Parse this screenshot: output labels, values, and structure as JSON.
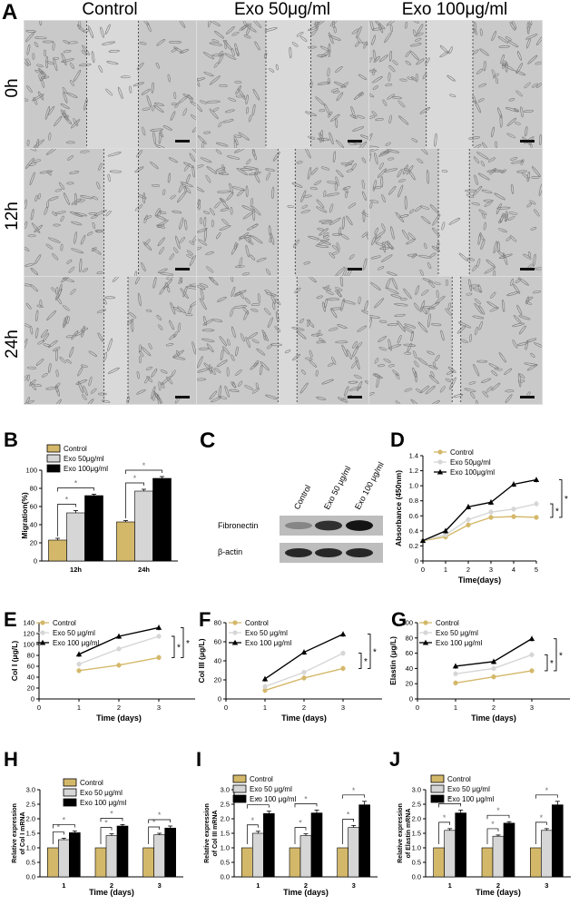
{
  "panel_A": {
    "letter": "A",
    "columns": [
      "Control",
      "Exo 50μg/ml",
      "Exo 100μg/ml"
    ],
    "rows": [
      "0h",
      "12h",
      "24h"
    ]
  },
  "panel_C": {
    "letter": "C",
    "lanes": [
      "Control",
      "Exo 50 μg/ml",
      "Exo 100 μg/ml"
    ],
    "band_labels": [
      "Fibronectin",
      "β-actin"
    ],
    "fibronectin_intensity": [
      0.35,
      0.8,
      0.95
    ],
    "actin_intensity": [
      0.85,
      0.85,
      0.85
    ]
  },
  "colors": {
    "control": "#d4b86a",
    "exo50": "#d6d6d6",
    "exo100": "#000000"
  },
  "chart_data": [
    {
      "id": "B",
      "type": "bar",
      "letter": "B",
      "categories": [
        "12h",
        "24h"
      ],
      "series": [
        {
          "name": "Control",
          "values": [
            23,
            43
          ],
          "errors": [
            2,
            1.5
          ]
        },
        {
          "name": "Exo 50μg/ml",
          "values": [
            53,
            77
          ],
          "errors": [
            2.5,
            2
          ]
        },
        {
          "name": "Exo 100μg/ml",
          "values": [
            72,
            91
          ],
          "errors": [
            1.5,
            2
          ]
        }
      ],
      "ylabel": "Migration(%)",
      "xlabel": "",
      "ylim": [
        0,
        100
      ],
      "yticks": [
        0,
        20,
        40,
        60,
        80,
        100
      ],
      "legend": "top-left",
      "sig": "*"
    },
    {
      "id": "D",
      "type": "line",
      "letter": "D",
      "x": [
        0,
        1,
        2,
        3,
        4,
        5
      ],
      "series": [
        {
          "name": "Control",
          "values": [
            0.27,
            0.32,
            0.48,
            0.58,
            0.59,
            0.58
          ]
        },
        {
          "name": "Exo 50μg/ml",
          "values": [
            0.27,
            0.35,
            0.55,
            0.65,
            0.69,
            0.76
          ]
        },
        {
          "name": "Exo 100μg/ml",
          "values": [
            0.27,
            0.4,
            0.72,
            0.78,
            1.02,
            1.08
          ]
        }
      ],
      "ylabel": "Absorbance (450nm)",
      "xlabel": "Time(days)",
      "ylim": [
        0,
        1.4
      ],
      "yticks": [
        0,
        0.2,
        0.4,
        0.6,
        0.8,
        1.0,
        1.2,
        1.4
      ],
      "ytick_labels": [
        "0",
        "0.2",
        "0.4",
        "0.6",
        "0.8",
        "1.0",
        "1.2",
        "1.4"
      ],
      "xlim": [
        0,
        5
      ],
      "xticks": [
        0,
        1,
        2,
        3,
        4,
        5
      ],
      "legend": "top-left",
      "sig": "*"
    },
    {
      "id": "E",
      "type": "line",
      "letter": "E",
      "x": [
        1,
        2,
        3
      ],
      "series": [
        {
          "name": "Control",
          "values": [
            52,
            62,
            76
          ]
        },
        {
          "name": "Exo 50 μg/ml",
          "values": [
            64,
            92,
            115
          ]
        },
        {
          "name": "Exo 100 μg/ml",
          "values": [
            82,
            115,
            131
          ]
        }
      ],
      "ylabel": "Col I (μg/L)",
      "xlabel": "Time (days)",
      "ylim": [
        0,
        140
      ],
      "yticks": [
        0,
        20,
        40,
        60,
        80,
        100,
        120,
        140
      ],
      "xlim": [
        0,
        4
      ],
      "xticks": [
        0,
        1,
        2,
        3
      ],
      "legend": "top-left",
      "sig": "*"
    },
    {
      "id": "F",
      "type": "line",
      "letter": "F",
      "x": [
        1,
        2,
        3
      ],
      "series": [
        {
          "name": "Control",
          "values": [
            9,
            22,
            32
          ]
        },
        {
          "name": "Exo 50 μg/ml",
          "values": [
            13,
            28,
            48
          ]
        },
        {
          "name": "Exo 100 μg/ml",
          "values": [
            21,
            49,
            68
          ]
        }
      ],
      "ylabel": "Col III (μg/L)",
      "xlabel": "Time (days)",
      "ylim": [
        0,
        80
      ],
      "yticks": [
        0,
        20,
        40,
        60,
        80
      ],
      "xlim": [
        0,
        4
      ],
      "xticks": [
        0,
        1,
        2,
        3
      ],
      "legend": "top-left",
      "sig": "*"
    },
    {
      "id": "G",
      "type": "line",
      "letter": "G",
      "x": [
        1,
        2,
        3
      ],
      "series": [
        {
          "name": "Control",
          "values": [
            21,
            29,
            37
          ]
        },
        {
          "name": "Exo 50 μg/ml",
          "values": [
            33,
            40,
            58
          ]
        },
        {
          "name": "Exo 100 μg/ml",
          "values": [
            43,
            49,
            79
          ]
        }
      ],
      "ylabel": "Elastin (μg/L)",
      "xlabel": "Time (days)",
      "ylim": [
        0,
        100
      ],
      "yticks": [
        0,
        20,
        40,
        60,
        80,
        100
      ],
      "xlim": [
        0,
        4
      ],
      "xticks": [
        0,
        1,
        2,
        3
      ],
      "legend": "top-left",
      "sig": "*"
    },
    {
      "id": "H",
      "type": "bar",
      "letter": "H",
      "categories": [
        "1",
        "2",
        "3"
      ],
      "series": [
        {
          "name": "Control",
          "values": [
            1.0,
            1.0,
            1.0
          ],
          "errors": [
            0,
            0,
            0
          ]
        },
        {
          "name": "Exo 50 μg/ml",
          "values": [
            1.28,
            1.42,
            1.45
          ],
          "errors": [
            0.05,
            0.06,
            0.05
          ]
        },
        {
          "name": "Exo 100 μg/ml",
          "values": [
            1.52,
            1.75,
            1.68
          ],
          "errors": [
            0.06,
            0.05,
            0.07
          ]
        }
      ],
      "ylabel": "Relative expression of Col I mRNA",
      "xlabel": "Time (days)",
      "ylim": [
        0,
        3.0
      ],
      "yticks": [
        0,
        0.5,
        1.0,
        1.5,
        2.0,
        2.5,
        3.0
      ],
      "ytick_labels": [
        "0.0",
        "0.5",
        "1.0",
        "1.5",
        "2.0",
        "2.5",
        "3.0"
      ],
      "legend": "top-left",
      "sig": "*"
    },
    {
      "id": "I",
      "type": "bar",
      "letter": "I",
      "categories": [
        "1",
        "2",
        "3"
      ],
      "series": [
        {
          "name": "Control",
          "values": [
            1.0,
            1.0,
            1.0
          ],
          "errors": [
            0,
            0,
            0
          ]
        },
        {
          "name": "Exo 50 μg/ml",
          "values": [
            1.5,
            1.42,
            1.7
          ],
          "errors": [
            0.07,
            0.06,
            0.07
          ]
        },
        {
          "name": "Exo 100 μg/ml",
          "values": [
            2.18,
            2.2,
            2.48
          ],
          "errors": [
            0.08,
            0.1,
            0.12
          ]
        }
      ],
      "ylabel": "Relative expression of Col III mRNA",
      "xlabel": "Time (days)",
      "ylim": [
        0,
        3.0
      ],
      "yticks": [
        0,
        0.5,
        1.0,
        1.5,
        2.0,
        2.5,
        3.0
      ],
      "ytick_labels": [
        "0.0",
        "0.5",
        "1.0",
        "1.5",
        "2.0",
        "2.5",
        "3.0"
      ],
      "legend": "top-left",
      "sig": "*"
    },
    {
      "id": "J",
      "type": "bar",
      "letter": "J",
      "categories": [
        "1",
        "2",
        "3"
      ],
      "series": [
        {
          "name": "Control",
          "values": [
            1.0,
            1.0,
            1.0
          ],
          "errors": [
            0,
            0,
            0
          ]
        },
        {
          "name": "Exo 50 μg/ml",
          "values": [
            1.6,
            1.4,
            1.6
          ],
          "errors": [
            0.06,
            0.04,
            0.06
          ]
        },
        {
          "name": "Exo 100 μg/ml",
          "values": [
            2.2,
            1.85,
            2.48
          ],
          "errors": [
            0.1,
            0.05,
            0.12
          ]
        }
      ],
      "ylabel": "Relative expression of Elastin mRNA",
      "xlabel": "Time (days)",
      "ylim": [
        0,
        3.0
      ],
      "yticks": [
        0,
        0.5,
        1.0,
        1.5,
        2.0,
        2.5,
        3.0
      ],
      "ytick_labels": [
        "0.0",
        "0.5",
        "1.0",
        "1.5",
        "2.0",
        "2.5",
        "3.0"
      ],
      "legend": "top-left",
      "sig": "*"
    }
  ]
}
